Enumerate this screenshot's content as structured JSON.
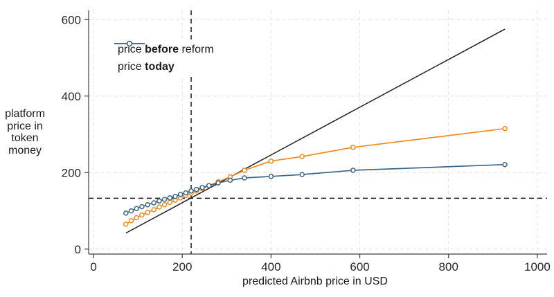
{
  "figure": {
    "ylabel": "platform\nprice in\ntoken\nmoney",
    "xlabel": "predicted Airbnb price in USD"
  },
  "legend": {
    "items": [
      {
        "prefix": "price ",
        "bold": "before",
        "suffix": " reform",
        "color": "#ef8b1f"
      },
      {
        "prefix": "price ",
        "bold": "today",
        "suffix": "",
        "color": "#3d6587"
      }
    ]
  },
  "chart_data": {
    "type": "line",
    "title": "",
    "xlabel": "predicted Airbnb price in USD",
    "ylabel": "platform price in token money",
    "xlim": [
      -11,
      1022
    ],
    "ylim": [
      -13,
      624
    ],
    "x_ticks": [
      0,
      200,
      400,
      600,
      800,
      1000
    ],
    "y_ticks": [
      0,
      200,
      400,
      600
    ],
    "grid": "both-axes light dashed gridlines at every tick",
    "legend_position": "top-left inside plot, white background, no border",
    "x": [
      73,
      85,
      97,
      109,
      122,
      136,
      148,
      160,
      172,
      184,
      196,
      208,
      220,
      232,
      245,
      260,
      281,
      308,
      340,
      400,
      470,
      585,
      927
    ],
    "series": [
      {
        "name": "price before reform",
        "color": "#ef8b1f",
        "values": [
          65,
          74,
          82,
          89,
          96,
          103,
          110,
          116,
          122,
          128,
          134,
          140,
          146,
          152,
          158,
          166,
          176,
          189,
          206,
          230,
          242,
          266,
          315
        ]
      },
      {
        "name": "price today",
        "color": "#3d6587",
        "values": [
          94,
          100,
          106,
          111,
          116,
          121,
          126,
          130,
          134,
          138,
          143,
          147,
          152,
          156,
          161,
          166,
          173,
          180,
          186,
          190,
          195,
          206,
          221
        ]
      }
    ],
    "reference_lines": {
      "diagonal": {
        "from": [
          73,
          42
        ],
        "to": [
          927,
          575
        ],
        "style": "solid",
        "color": "#1f1f1f"
      },
      "vline": {
        "x": 220,
        "style": "dashed",
        "color": "#1a1a1a"
      },
      "hline": {
        "y": 133,
        "style": "dashed",
        "color": "#1a1a1a"
      }
    }
  }
}
